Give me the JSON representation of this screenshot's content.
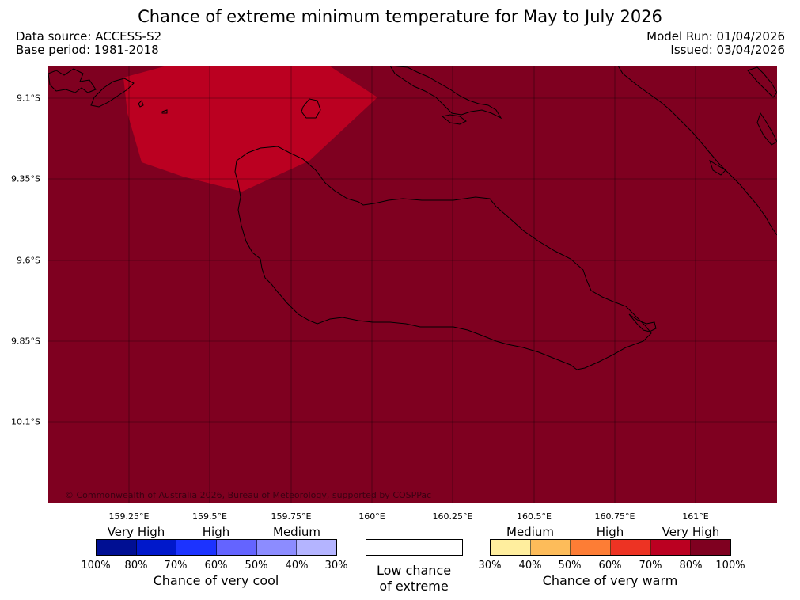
{
  "title": "Chance of extreme minimum temperature for May to July 2026",
  "meta": {
    "data_source": "Data source: ACCESS-S2",
    "base_period": "Base period: 1981-2018",
    "model_run": "Model Run: 01/04/2026",
    "issued": "Issued: 03/04/2026"
  },
  "map": {
    "background_color": "#7f0020",
    "patch_color": "#bb0021",
    "lat_labels": [
      "9.1°S",
      "9.35°S",
      "9.6°S",
      "9.85°S",
      "10.1°S"
    ],
    "lon_labels": [
      "159.25°E",
      "159.5°E",
      "159.75°E",
      "160°E",
      "160.25°E",
      "160.5°E",
      "160.75°E",
      "161°E"
    ],
    "copyright": "© Commonwealth of Australia 2026, Bureau of Meteorology, supported by COSPPac"
  },
  "legend": {
    "cool": {
      "levels": [
        "Very High",
        "High",
        "Medium"
      ],
      "colors": [
        "#000f93",
        "#0018cb",
        "#1c33ff",
        "#6464ff",
        "#8c8cff",
        "#b4b4ff"
      ],
      "ticks": [
        "100%",
        "80%",
        "70%",
        "60%",
        "50%",
        "40%",
        "30%"
      ],
      "caption": "Chance of very cool"
    },
    "neutral": {
      "color": "#ffffff",
      "caption_line1": "Low chance",
      "caption_line2": "of extreme"
    },
    "warm": {
      "levels": [
        "Medium",
        "High",
        "Very High"
      ],
      "colors": [
        "#ffee9e",
        "#fdbc5a",
        "#fd7d35",
        "#ed3323",
        "#bb0021",
        "#7f0020"
      ],
      "ticks": [
        "30%",
        "40%",
        "50%",
        "60%",
        "70%",
        "80%",
        "100%"
      ],
      "caption": "Chance of very warm"
    }
  }
}
